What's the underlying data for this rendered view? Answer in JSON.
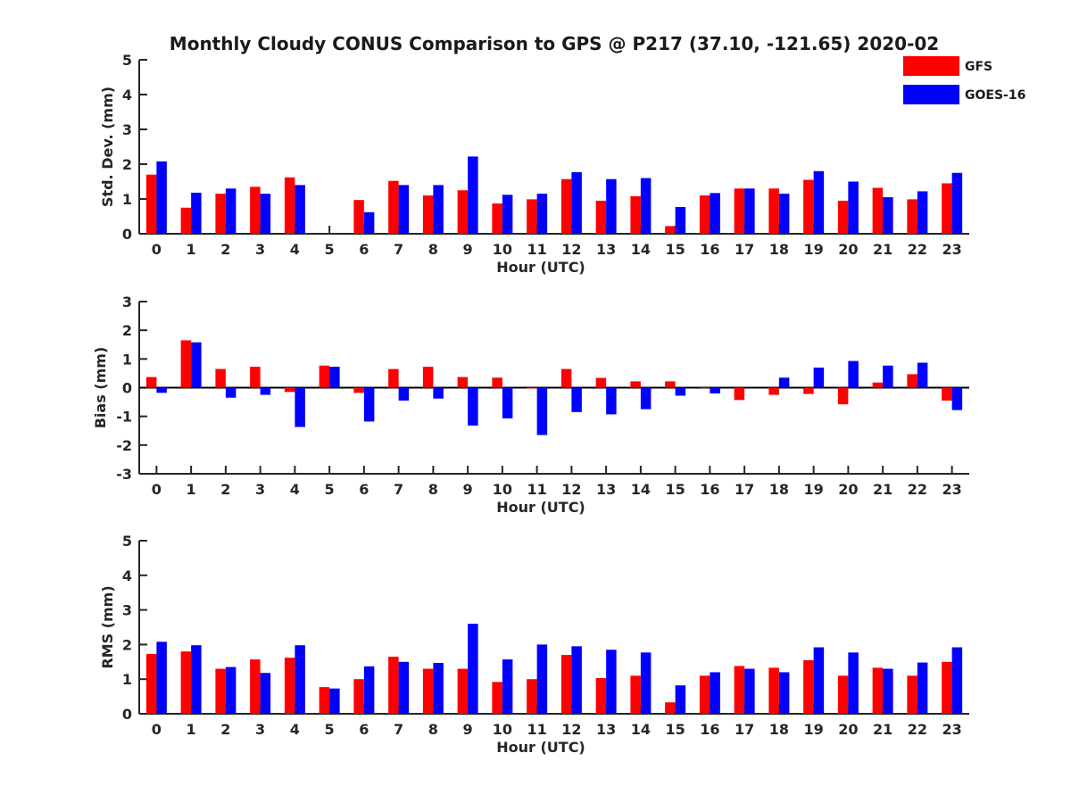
{
  "title": "Monthly Cloudy CONUS Comparison to GPS @ P217 (37.10, -121.65) 2020-02",
  "legend": [
    {
      "name": "GFS",
      "color": "#ff0000"
    },
    {
      "name": "GOES-16",
      "color": "#0000ff"
    }
  ],
  "chart_data": [
    {
      "type": "bar",
      "title": "Monthly Cloudy CONUS Comparison to GPS @ P217 (37.10, -121.65) 2020-02",
      "xlabel": "Hour (UTC)",
      "ylabel": "Std. Dev. (mm)",
      "ylim": [
        0,
        5
      ],
      "yticks": [
        "0",
        "1",
        "2",
        "3",
        "4",
        "5"
      ],
      "categories": [
        "0",
        "1",
        "2",
        "3",
        "4",
        "5",
        "6",
        "7",
        "8",
        "9",
        "10",
        "11",
        "12",
        "13",
        "14",
        "15",
        "16",
        "17",
        "18",
        "19",
        "20",
        "21",
        "22",
        "23"
      ],
      "series": [
        {
          "name": "GFS",
          "color": "#ff0000",
          "values": [
            1.7,
            0.75,
            1.15,
            1.35,
            1.62,
            0,
            0.97,
            1.52,
            1.1,
            1.25,
            0.87,
            0.99,
            1.57,
            0.95,
            1.08,
            0.22,
            1.1,
            1.3,
            1.3,
            1.55,
            0.95,
            1.32,
            0.99,
            1.45
          ]
        },
        {
          "name": "GOES-16",
          "color": "#0000ff",
          "values": [
            2.08,
            1.18,
            1.3,
            1.15,
            1.4,
            0,
            0.62,
            1.4,
            1.4,
            2.22,
            1.12,
            1.15,
            1.77,
            1.57,
            1.6,
            0.77,
            1.17,
            1.3,
            1.15,
            1.8,
            1.5,
            1.05,
            1.22,
            1.75
          ]
        }
      ]
    },
    {
      "type": "bar",
      "title": "",
      "xlabel": "Hour (UTC)",
      "ylabel": "Bias (mm)",
      "ylim": [
        -3,
        3
      ],
      "yticks": [
        "-3",
        "-2",
        "-1",
        "0",
        "1",
        "2",
        "3"
      ],
      "categories": [
        "0",
        "1",
        "2",
        "3",
        "4",
        "5",
        "6",
        "7",
        "8",
        "9",
        "10",
        "11",
        "12",
        "13",
        "14",
        "15",
        "16",
        "17",
        "18",
        "19",
        "20",
        "21",
        "22",
        "23"
      ],
      "series": [
        {
          "name": "GFS",
          "color": "#ff0000",
          "values": [
            0.37,
            1.65,
            0.65,
            0.73,
            -0.15,
            0.77,
            -0.18,
            0.65,
            0.73,
            0.37,
            0.35,
            -0.03,
            0.65,
            0.34,
            0.22,
            0.22,
            -0.02,
            -0.43,
            -0.25,
            -0.22,
            -0.58,
            0.18,
            0.47,
            -0.45
          ]
        },
        {
          "name": "GOES-16",
          "color": "#0000ff",
          "values": [
            -0.18,
            1.58,
            -0.35,
            -0.25,
            -1.37,
            0.73,
            -1.18,
            -0.45,
            -0.38,
            -1.32,
            -1.07,
            -1.65,
            -0.85,
            -0.93,
            -0.75,
            -0.28,
            -0.2,
            0,
            0.35,
            0.7,
            0.93,
            0.77,
            0.87,
            -0.78
          ]
        }
      ]
    },
    {
      "type": "bar",
      "title": "",
      "xlabel": "Hour (UTC)",
      "ylabel": "RMS (mm)",
      "ylim": [
        0,
        5
      ],
      "yticks": [
        "0",
        "1",
        "2",
        "3",
        "4",
        "5"
      ],
      "categories": [
        "0",
        "1",
        "2",
        "3",
        "4",
        "5",
        "6",
        "7",
        "8",
        "9",
        "10",
        "11",
        "12",
        "13",
        "14",
        "15",
        "16",
        "17",
        "18",
        "19",
        "20",
        "21",
        "22",
        "23"
      ],
      "series": [
        {
          "name": "GFS",
          "color": "#ff0000",
          "values": [
            1.73,
            1.8,
            1.3,
            1.57,
            1.62,
            0.77,
            1.0,
            1.65,
            1.3,
            1.3,
            0.92,
            1.0,
            1.7,
            1.03,
            1.1,
            0.33,
            1.1,
            1.38,
            1.33,
            1.55,
            1.1,
            1.33,
            1.1,
            1.5
          ]
        },
        {
          "name": "GOES-16",
          "color": "#0000ff",
          "values": [
            2.08,
            1.98,
            1.35,
            1.18,
            1.98,
            0.73,
            1.37,
            1.5,
            1.47,
            2.6,
            1.57,
            2.0,
            1.95,
            1.85,
            1.77,
            0.82,
            1.2,
            1.3,
            1.2,
            1.92,
            1.77,
            1.3,
            1.48,
            1.92
          ]
        }
      ]
    }
  ]
}
